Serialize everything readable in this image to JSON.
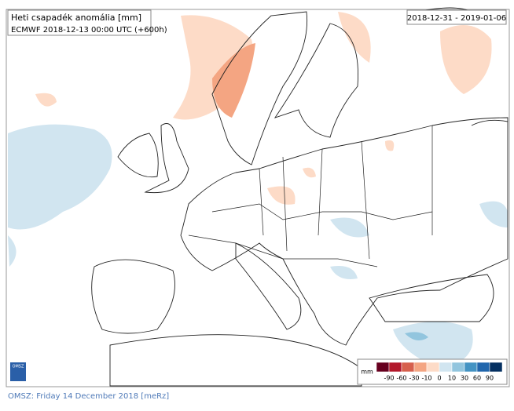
{
  "header": {
    "title": "Heti csapadék anomália [mm]",
    "subtitle": "ECMWF 2018-12-13 00:00 UTC (+600h)",
    "period": "2018-12-31 - 2019-01-06"
  },
  "legend": {
    "unit": "mm",
    "colors": [
      "#67001f",
      "#b2182b",
      "#d6604d",
      "#f4a582",
      "#fddbc7",
      "#d1e5f0",
      "#92c5de",
      "#4393c3",
      "#2166ac",
      "#053061"
    ],
    "ticks": [
      -90,
      -60,
      -30,
      -10,
      0,
      10,
      30,
      60,
      90
    ]
  },
  "logo": "OMSZ",
  "footer": "OMSZ: Friday 14 December 2018  [meRz]"
}
